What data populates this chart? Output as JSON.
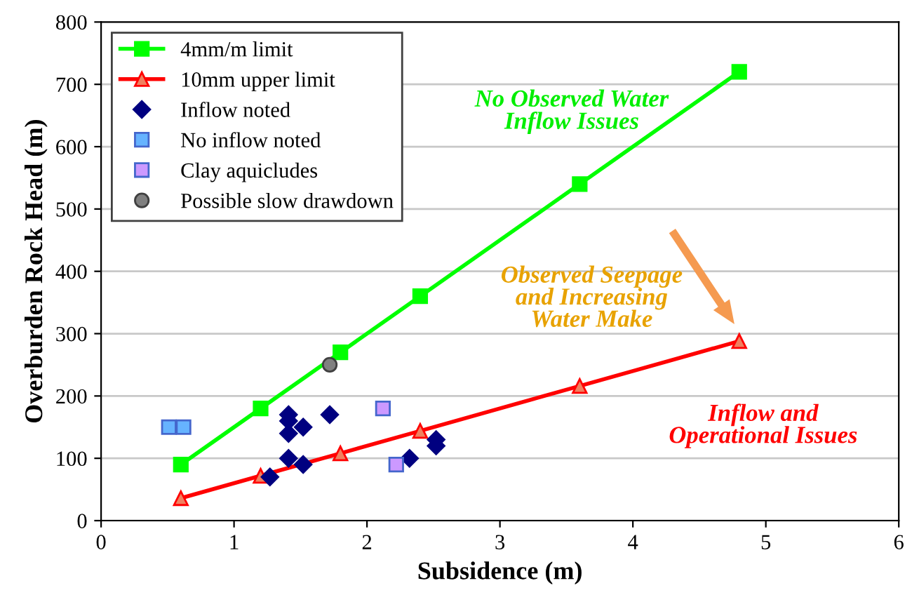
{
  "chart_data": {
    "type": "line",
    "xlabel": "Subsidence (m)",
    "ylabel": "Overburden Rock Head (m)",
    "xlim": [
      0,
      6
    ],
    "ylim": [
      0,
      800
    ],
    "xticks": [
      0,
      1,
      2,
      3,
      4,
      5,
      6
    ],
    "yticks": [
      0,
      100,
      200,
      300,
      400,
      500,
      600,
      700,
      800
    ],
    "grid": "y",
    "legend": "top left",
    "series": [
      {
        "name": "4mm/m limit",
        "color": "#00ff00",
        "marker": "square",
        "x": [
          0.6,
          1.2,
          1.8,
          2.4,
          3.6,
          4.8
        ],
        "values": [
          90,
          180,
          270,
          360,
          540,
          720
        ]
      },
      {
        "name": "10mm upper limit",
        "color": "#ff0000",
        "marker": "triangle",
        "x": [
          0.6,
          1.2,
          1.8,
          2.4,
          3.6,
          4.8
        ],
        "values": [
          36,
          72,
          108,
          144,
          216,
          288
        ]
      },
      {
        "name": "Inflow noted",
        "type": "scatter",
        "color": "#000080",
        "marker": "diamond",
        "x": [
          1.27,
          1.41,
          1.41,
          1.41,
          1.41,
          1.52,
          1.52,
          1.72,
          2.32,
          2.52,
          2.52
        ],
        "values": [
          70,
          100,
          140,
          160,
          170,
          90,
          150,
          170,
          100,
          130,
          120
        ]
      },
      {
        "name": "No inflow noted",
        "type": "scatter",
        "color": "#66b3ff",
        "marker": "square",
        "x": [
          0.51,
          0.62
        ],
        "values": [
          150,
          150
        ]
      },
      {
        "name": "Clay aquicludes",
        "type": "scatter",
        "color": "#cc99ff",
        "marker": "square",
        "x": [
          2.12,
          2.22
        ],
        "values": [
          180,
          90
        ]
      },
      {
        "name": "Possible slow drawdown",
        "type": "scatter",
        "color": "#808080",
        "marker": "circle",
        "x": [
          1.72
        ],
        "values": [
          250
        ]
      }
    ],
    "annotations": [
      "No Observed Water\nInflow Issues",
      "Observed Seepage\nand Increasing\nWater Make",
      "Inflow and\nOperational Issues"
    ]
  }
}
